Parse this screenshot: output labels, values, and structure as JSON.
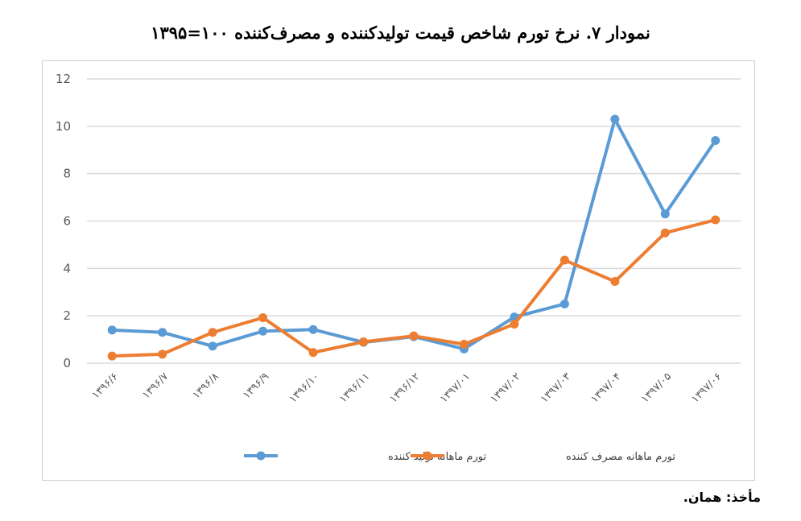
{
  "chart_data": {
    "type": "line",
    "title": "نمودار ۷. نرخ تورم شاخص قیمت تولیدکننده و مصرف‌کننده ۱۰۰=۱۳۹۵",
    "xlabel": "",
    "ylabel": "",
    "ylim": [
      0,
      12
    ],
    "yticks": [
      0,
      2,
      4,
      6,
      8,
      10,
      12
    ],
    "grid": true,
    "legend_position": "bottom",
    "categories": [
      "۱۳۹۶/۶",
      "۱۳۹۶/۷",
      "۱۳۹۶/۸",
      "۱۳۹۶/۹",
      "۱۳۹۶/۱۰",
      "۱۳۹۶/۱۱",
      "۱۳۹۶/۱۲",
      "۱۳۹۷/۰۱",
      "۱۳۹۷/۰۲",
      "۱۳۹۷/۰۳",
      "۱۳۹۷/۰۴",
      "۱۳۹۷/۰۵",
      "۱۳۹۷/۰۶"
    ],
    "series": [
      {
        "name": "تورم ماهانه تولید کننده",
        "color": "#5b9bd5",
        "values": [
          1.4,
          1.3,
          0.72,
          1.35,
          1.42,
          0.88,
          1.12,
          0.6,
          1.95,
          2.5,
          10.3,
          6.3,
          9.4
        ]
      },
      {
        "name": "تورم ماهانه مصرف کننده",
        "color": "#ed7d31",
        "values": [
          0.3,
          0.38,
          1.3,
          1.92,
          0.45,
          0.9,
          1.15,
          0.8,
          1.65,
          4.35,
          3.45,
          5.5,
          6.05
        ]
      }
    ]
  },
  "source_note": "مأخذ: همان."
}
